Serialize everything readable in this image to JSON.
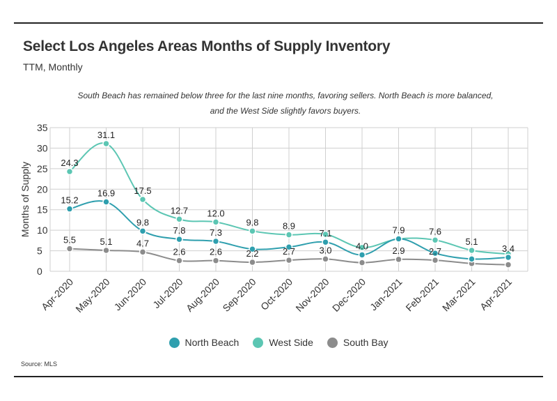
{
  "header": {
    "title": "Select Los Angeles Areas Months of Supply Inventory",
    "subtitle": "TTM, Monthly",
    "note": "South Beach has remained below three for the last nine months, favoring sellers. North Beach is more balanced, and the West Side slightly favors buyers.",
    "source": "Source:  MLS"
  },
  "chart_data": {
    "type": "line",
    "ylabel": "Months of Supply",
    "ylim": [
      0,
      35
    ],
    "yticks": [
      0,
      5,
      10,
      15,
      20,
      25,
      30,
      35
    ],
    "grid": true,
    "legend_position": "bottom",
    "categories": [
      "Apr-2020",
      "May-2020",
      "Jun-2020",
      "Jul-2020",
      "Aug-2020",
      "Sep-2020",
      "Oct-2020",
      "Nov-2020",
      "Dec-2020",
      "Jan-2021",
      "Feb-2021",
      "Mar-2021",
      "Apr-2021"
    ],
    "series": [
      {
        "name": "North Beach",
        "color": "#2f9fae",
        "values": [
          15.2,
          16.9,
          9.8,
          7.8,
          7.3,
          5.4,
          5.9,
          7.1,
          4.0,
          7.9,
          4.4,
          3.0,
          3.4
        ],
        "labeled": [
          true,
          true,
          true,
          true,
          true,
          false,
          false,
          true,
          true,
          false,
          false,
          false,
          true
        ]
      },
      {
        "name": "West Side",
        "color": "#5cc6b3",
        "values": [
          24.3,
          31.1,
          17.5,
          12.7,
          12.0,
          9.8,
          8.9,
          9.0,
          5.8,
          7.9,
          7.6,
          5.1,
          4.2
        ],
        "labeled": [
          true,
          true,
          true,
          true,
          true,
          true,
          true,
          false,
          false,
          true,
          true,
          true,
          false
        ]
      },
      {
        "name": "South Bay",
        "color": "#8c8c8c",
        "values": [
          5.5,
          5.1,
          4.7,
          2.6,
          2.6,
          2.2,
          2.7,
          3.0,
          2.1,
          2.9,
          2.7,
          1.9,
          1.6
        ],
        "labeled": [
          true,
          true,
          true,
          true,
          true,
          true,
          true,
          true,
          false,
          true,
          true,
          false,
          false
        ]
      }
    ],
    "legend": [
      "North Beach",
      "West Side",
      "South Bay"
    ]
  }
}
